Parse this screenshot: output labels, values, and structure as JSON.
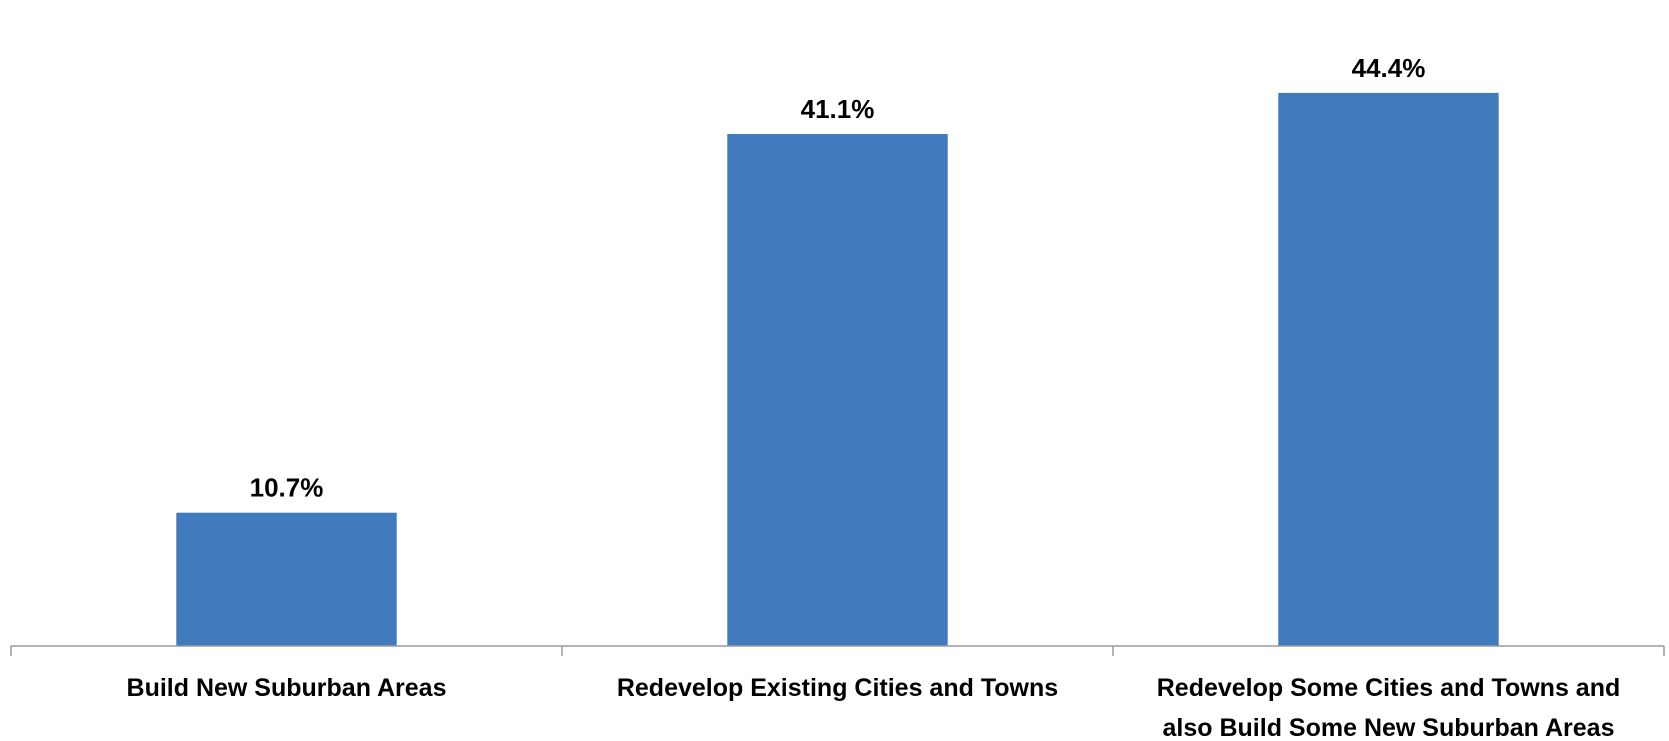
{
  "chart_data": {
    "type": "bar",
    "title": "",
    "xlabel": "",
    "ylabel": "",
    "categories": [
      [
        "Build New Suburban Areas"
      ],
      [
        "Redevelop Existing Cities and Towns"
      ],
      [
        "Redevelop Some Cities and Towns and",
        "also Build Some New Suburban Areas"
      ]
    ],
    "values": [
      10.7,
      41.1,
      44.4
    ],
    "data_labels": [
      "10.7%",
      "41.1%",
      "44.4%"
    ],
    "value_unit": "%",
    "ylim": [
      0,
      48
    ],
    "grid": false,
    "legend": "none",
    "bar_color": "#427bbd",
    "axis_color": "#9a9a9a"
  }
}
